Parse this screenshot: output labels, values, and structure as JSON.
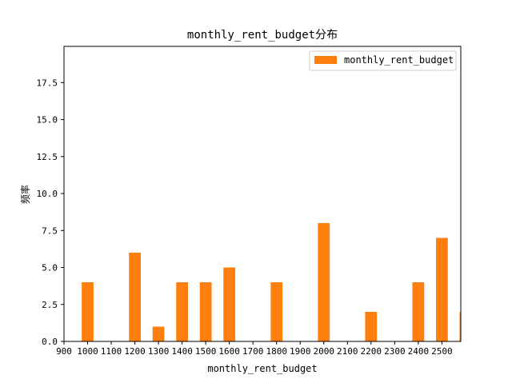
{
  "chart_data": {
    "type": "bar",
    "title": "monthly_rent_budget分布",
    "xlabel": "monthly_rent_budget",
    "ylabel": "频率",
    "legend": {
      "label": "monthly_rent_budget",
      "position": "top-right"
    },
    "bar_color": "#ff7f0e",
    "xlim": [
      900,
      2580
    ],
    "ylim": [
      0,
      19.95
    ],
    "grid": false,
    "x_ticks": [
      "900",
      "1000",
      "1100",
      "1200",
      "1300",
      "1400",
      "1500",
      "1600",
      "1700",
      "1800",
      "1900",
      "2000",
      "2100",
      "2200",
      "2300",
      "2400",
      "2500"
    ],
    "y_ticks": [
      "0.0",
      "2.5",
      "5.0",
      "7.5",
      "10.0",
      "12.5",
      "15.0",
      "17.5"
    ],
    "bar_width": 50,
    "bars": [
      {
        "x": 1000,
        "value": 4
      },
      {
        "x": 1200,
        "value": 6
      },
      {
        "x": 1300,
        "value": 1
      },
      {
        "x": 1400,
        "value": 4
      },
      {
        "x": 1500,
        "value": 4
      },
      {
        "x": 1600,
        "value": 5
      },
      {
        "x": 1800,
        "value": 4
      },
      {
        "x": 2000,
        "value": 8
      },
      {
        "x": 2200,
        "value": 2
      },
      {
        "x": 2400,
        "value": 4
      },
      {
        "x": 2500,
        "value": 7
      },
      {
        "x": 2600,
        "value": 2
      }
    ]
  }
}
